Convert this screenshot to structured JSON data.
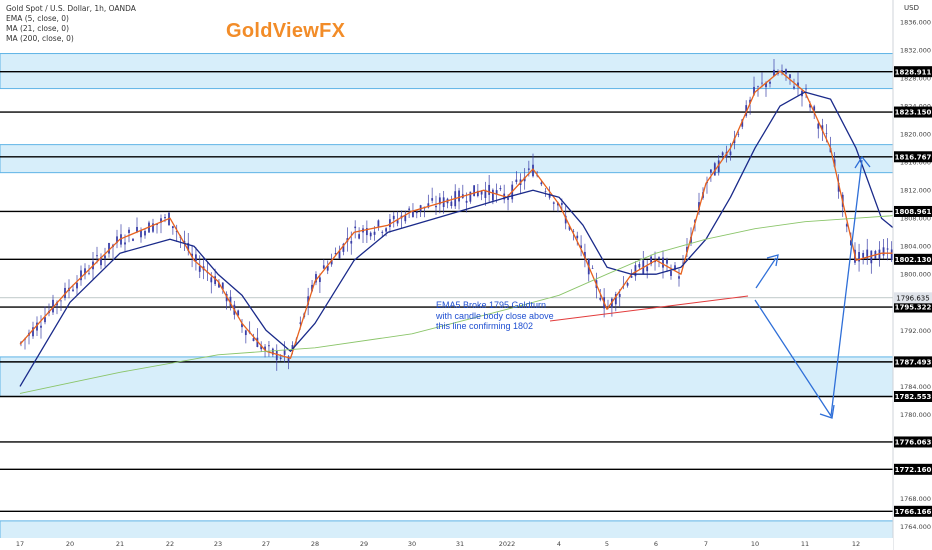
{
  "header": {
    "symbol_line": "Gold Spot / U.S. Dollar, 1h, OANDA",
    "indicators": [
      "EMA (5, close, 0)",
      "MA (21, close, 0)",
      "MA (200, close, 0)"
    ],
    "brand": "GoldViewFX",
    "currency": "USD"
  },
  "annotation": {
    "text": "EMA5 Broke 1795 Goldturn with candle body close above this line confirming 1802"
  },
  "colors": {
    "zone_fill": "#d7eefa",
    "zone_border": "#5fb4e6",
    "ema5": "#e8621e",
    "ma21": "#1a2a8a",
    "ma200": "#8bc56a",
    "candle": "#3a3fa8",
    "arrow": "#2f6fd8",
    "annot_line": "#e23b3b",
    "level_line": "#000000"
  },
  "chart_data": {
    "type": "candlestick",
    "title": "Gold Spot / U.S. Dollar, 1h, OANDA",
    "ylim": [
      1762.5,
      1837
    ],
    "y_ticks": [
      1836,
      1832,
      1828,
      1824,
      1820,
      1816,
      1812,
      1808,
      1804,
      1800,
      1796,
      1792,
      1788,
      1784,
      1780,
      1776,
      1772,
      1768,
      1764
    ],
    "x_ticks": [
      "17",
      "20",
      "21",
      "22",
      "23",
      "27",
      "28",
      "29",
      "30",
      "31",
      "2022",
      "4",
      "5",
      "6",
      "7",
      "10",
      "11",
      "12"
    ],
    "levels": [
      1828.911,
      1823.15,
      1816.767,
      1808.961,
      1802.13,
      1795.322,
      1787.493,
      1782.553,
      1776.063,
      1772.16,
      1766.166
    ],
    "current_price": 1796.635,
    "zones": [
      [
        1826.5,
        1831.5
      ],
      [
        1814.5,
        1818.5
      ],
      [
        1782.553,
        1788.2
      ],
      [
        1761,
        1764.8
      ]
    ],
    "series": [
      {
        "name": "EMA (5, close, 0)",
        "role": "ema5",
        "points": [
          [
            17,
            1790
          ],
          [
            18,
            1798
          ],
          [
            19,
            1805
          ],
          [
            20,
            1808
          ],
          [
            20.5,
            1802
          ],
          [
            21,
            1799
          ],
          [
            21.5,
            1793
          ],
          [
            22,
            1789
          ],
          [
            22.5,
            1788
          ],
          [
            23,
            1799
          ],
          [
            23.8,
            1806
          ],
          [
            24.5,
            1807
          ],
          [
            25,
            1809
          ],
          [
            26.5,
            1812
          ],
          [
            27,
            1811
          ],
          [
            27.5,
            1815
          ],
          [
            28,
            1810
          ],
          [
            28.5,
            1803
          ],
          [
            29,
            1795
          ],
          [
            29.5,
            1800
          ],
          [
            30,
            1802
          ],
          [
            30.5,
            1800
          ],
          [
            31,
            1813
          ],
          [
            31.5,
            1818
          ],
          [
            32,
            1826
          ],
          [
            32.5,
            1829
          ],
          [
            33,
            1826
          ],
          [
            33.5,
            1818
          ],
          [
            34,
            1802
          ],
          [
            34.5,
            1803
          ],
          [
            35,
            1803
          ],
          [
            35.5,
            1808
          ],
          [
            36,
            1815
          ],
          [
            36.5,
            1814
          ],
          [
            37,
            1826
          ],
          [
            37.5,
            1818
          ],
          [
            38,
            1813
          ],
          [
            38.5,
            1805
          ],
          [
            39,
            1797
          ],
          [
            39.5,
            1791
          ],
          [
            40,
            1790
          ],
          [
            40.5,
            1792
          ],
          [
            41,
            1796
          ]
        ]
      },
      {
        "name": "MA (21, close, 0)",
        "role": "ma21",
        "points": [
          [
            17,
            1784
          ],
          [
            18,
            1796
          ],
          [
            19,
            1803
          ],
          [
            20,
            1805
          ],
          [
            20.5,
            1804
          ],
          [
            21,
            1800
          ],
          [
            21.5,
            1797
          ],
          [
            22,
            1792
          ],
          [
            22.5,
            1789
          ],
          [
            23,
            1793
          ],
          [
            23.8,
            1802
          ],
          [
            24.5,
            1806
          ],
          [
            25,
            1807
          ],
          [
            26.5,
            1810
          ],
          [
            27,
            1811
          ],
          [
            27.5,
            1812
          ],
          [
            28,
            1811
          ],
          [
            28.5,
            1807
          ],
          [
            29,
            1801
          ],
          [
            29.5,
            1800
          ],
          [
            30,
            1800
          ],
          [
            30.5,
            1801
          ],
          [
            31,
            1805
          ],
          [
            31.5,
            1811
          ],
          [
            32,
            1818
          ],
          [
            32.5,
            1824
          ],
          [
            33,
            1826
          ],
          [
            33.5,
            1825
          ],
          [
            34,
            1818
          ],
          [
            34.5,
            1808
          ],
          [
            35,
            1805
          ],
          [
            35.5,
            1806
          ],
          [
            36,
            1810
          ],
          [
            36.5,
            1813
          ],
          [
            37,
            1817
          ],
          [
            37.5,
            1818
          ],
          [
            38,
            1816
          ],
          [
            38.5,
            1809
          ],
          [
            39,
            1800
          ],
          [
            39.5,
            1793
          ],
          [
            40,
            1791
          ],
          [
            40.5,
            1791
          ],
          [
            41,
            1793
          ]
        ]
      },
      {
        "name": "MA (200, close, 0)",
        "role": "ma200",
        "points": [
          [
            17,
            1783
          ],
          [
            19,
            1786
          ],
          [
            21,
            1788.5
          ],
          [
            23,
            1789.5
          ],
          [
            25,
            1791.5
          ],
          [
            27,
            1795
          ],
          [
            28,
            1797
          ],
          [
            29,
            1800
          ],
          [
            30,
            1803
          ],
          [
            31,
            1805
          ],
          [
            32,
            1806.5
          ],
          [
            33,
            1807.5
          ],
          [
            34,
            1808
          ],
          [
            35,
            1808.5
          ],
          [
            36,
            1810
          ],
          [
            37,
            1811.5
          ],
          [
            37.5,
            1812
          ],
          [
            38,
            1811.5
          ],
          [
            39,
            1809.5
          ],
          [
            40,
            1808
          ],
          [
            41,
            1807.5
          ]
        ]
      }
    ]
  }
}
